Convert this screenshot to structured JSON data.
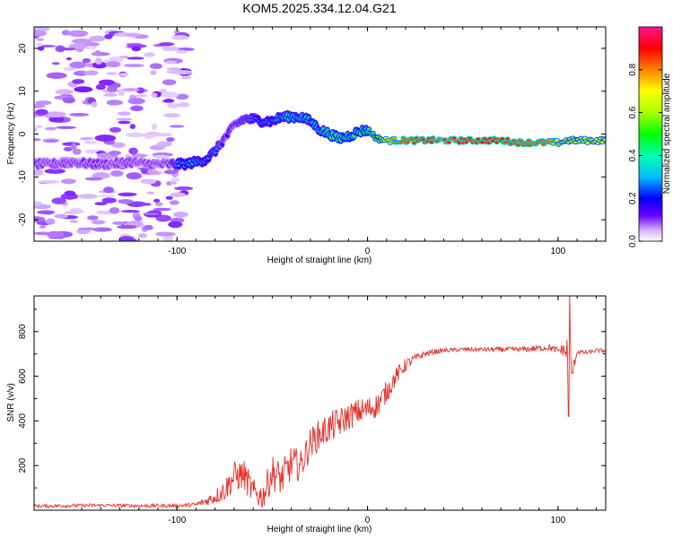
{
  "title": "KOM5.2025.334.12.04.G21",
  "colors": {
    "snr_line": "#e8302a",
    "frame": "#000000",
    "background": "#ffffff"
  },
  "chart_data": [
    {
      "type": "heatmap",
      "name": "spectrogram",
      "xlabel": "Height of straight line (km)",
      "ylabel": "Frequency (Hz)",
      "xlim": [
        -175,
        125
      ],
      "ylim": [
        -25,
        25
      ],
      "xticks": [
        -100,
        0,
        100
      ],
      "yticks": [
        -20,
        -10,
        0,
        10,
        20
      ],
      "colorbar": {
        "label": "Normalized spectral amplitude",
        "range": [
          0,
          1
        ],
        "ticks": [
          0.0,
          0.2,
          0.4,
          0.6,
          0.8
        ],
        "tick_labels": [
          "0.0",
          "0.2",
          "0.4",
          "0.6",
          "0.8"
        ]
      },
      "ridge": {
        "description_points": "peak frequency (Hz) of the dominant signal vs height (km), with normalized amplitude",
        "x": [
          -175,
          -165,
          -155,
          -145,
          -135,
          -125,
          -115,
          -105,
          -100,
          -95,
          -90,
          -85,
          -80,
          -75,
          -70,
          -65,
          -60,
          -55,
          -50,
          -45,
          -40,
          -35,
          -30,
          -25,
          -20,
          -15,
          -10,
          -5,
          0,
          5,
          10,
          15,
          20,
          30,
          40,
          50,
          60,
          70,
          80,
          90,
          95,
          100,
          105,
          110,
          115,
          120,
          125
        ],
        "freq": [
          -7,
          -7,
          -6.5,
          -7,
          -7,
          -6.5,
          -7,
          -7,
          -7,
          -7,
          -6.5,
          -6,
          -4,
          -1,
          2,
          3.5,
          3.5,
          3,
          3,
          4,
          4,
          4,
          3,
          1,
          0,
          -1,
          -0.5,
          0.5,
          1,
          -1,
          -1.5,
          -1.5,
          -1.5,
          -1.5,
          -1.5,
          -1.5,
          -1.5,
          -1.5,
          -2,
          -2,
          -2,
          -2,
          -1.5,
          -1.5,
          -1.5,
          -1.5,
          -1.5
        ],
        "amp": [
          0.1,
          0.1,
          0.12,
          0.12,
          0.1,
          0.1,
          0.1,
          0.12,
          0.3,
          0.35,
          0.4,
          0.35,
          0.3,
          0.2,
          0.2,
          0.25,
          0.3,
          0.35,
          0.35,
          0.4,
          0.45,
          0.45,
          0.4,
          0.45,
          0.55,
          0.55,
          0.5,
          0.55,
          0.45,
          0.5,
          0.7,
          0.8,
          0.85,
          0.9,
          0.95,
          0.9,
          0.9,
          0.9,
          0.85,
          0.85,
          0.8,
          0.7,
          0.6,
          0.6,
          0.65,
          0.65,
          0.6
        ]
      },
      "noise_extent_km": [
        -175,
        -95
      ]
    },
    {
      "type": "line",
      "name": "snr",
      "xlabel": "Height of straight line (km)",
      "ylabel": "SNR (v/v)",
      "xlim": [
        -175,
        125
      ],
      "ylim": [
        0,
        960
      ],
      "xticks": [
        -100,
        0,
        100
      ],
      "yticks": [
        200,
        400,
        600,
        800
      ],
      "series": [
        {
          "name": "SNR",
          "x": [
            -175,
            -160,
            -140,
            -120,
            -100,
            -90,
            -85,
            -80,
            -75,
            -70,
            -65,
            -60,
            -55,
            -50,
            -45,
            -40,
            -35,
            -30,
            -25,
            -20,
            -15,
            -10,
            -5,
            0,
            5,
            10,
            15,
            20,
            25,
            30,
            35,
            40,
            50,
            60,
            70,
            80,
            90,
            95,
            100,
            103,
            105,
            106,
            107,
            110,
            115,
            120,
            125
          ],
          "values": [
            18,
            20,
            22,
            20,
            20,
            25,
            40,
            60,
            90,
            150,
            160,
            80,
            60,
            170,
            140,
            210,
            200,
            300,
            340,
            370,
            390,
            420,
            440,
            450,
            470,
            530,
            600,
            650,
            680,
            700,
            710,
            715,
            720,
            720,
            720,
            720,
            725,
            730,
            715,
            720,
            700,
            870,
            600,
            710,
            705,
            715,
            715
          ],
          "noise": [
            8,
            8,
            8,
            8,
            8,
            10,
            20,
            35,
            50,
            70,
            70,
            60,
            60,
            80,
            80,
            80,
            70,
            70,
            70,
            70,
            70,
            60,
            60,
            60,
            55,
            50,
            40,
            30,
            20,
            15,
            12,
            10,
            10,
            10,
            12,
            12,
            15,
            15,
            15,
            30,
            100,
            80,
            40,
            10,
            10,
            10,
            10
          ]
        }
      ]
    }
  ]
}
